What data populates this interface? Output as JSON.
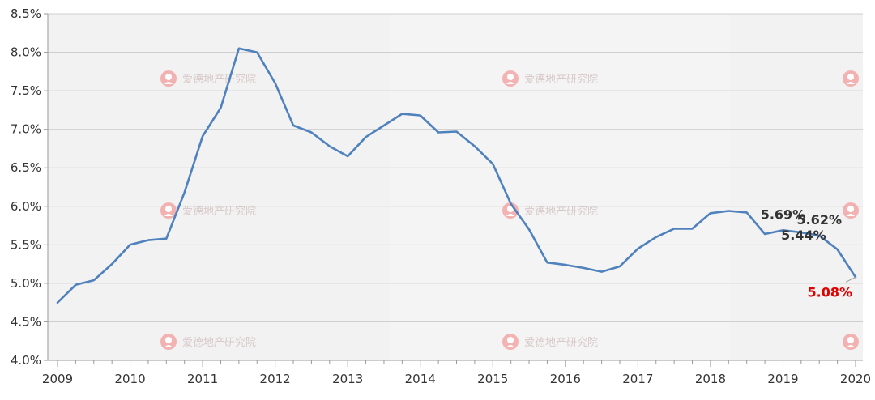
{
  "chart_data": {
    "type": "line",
    "title": "",
    "xlabel": "",
    "ylabel": "",
    "x_ticks": [
      "2009",
      "2010",
      "2011",
      "2012",
      "2013",
      "2014",
      "2015",
      "2016",
      "2017",
      "2018",
      "2019",
      "2020"
    ],
    "y_ticks": [
      "4.0%",
      "4.5%",
      "5.0%",
      "5.5%",
      "6.0%",
      "6.5%",
      "7.0%",
      "7.5%",
      "8.0%",
      "8.5%"
    ],
    "ylim": [
      4.0,
      8.5
    ],
    "xlim": [
      2009.0,
      2020.0
    ],
    "grid": true,
    "line_color": "#4f81bd",
    "series": [
      {
        "points": [
          [
            2009.0,
            4.75
          ],
          [
            2009.25,
            4.98
          ],
          [
            2009.5,
            5.04
          ],
          [
            2009.75,
            5.25
          ],
          [
            2010.0,
            5.5
          ],
          [
            2010.25,
            5.56
          ],
          [
            2010.5,
            5.58
          ],
          [
            2010.75,
            6.18
          ],
          [
            2011.0,
            6.91
          ],
          [
            2011.25,
            7.28
          ],
          [
            2011.5,
            8.05
          ],
          [
            2011.75,
            8.0
          ],
          [
            2012.0,
            7.6
          ],
          [
            2012.25,
            7.05
          ],
          [
            2012.5,
            6.96
          ],
          [
            2012.75,
            6.78
          ],
          [
            2013.0,
            6.65
          ],
          [
            2013.25,
            6.9
          ],
          [
            2013.5,
            7.05
          ],
          [
            2013.75,
            7.2
          ],
          [
            2014.0,
            7.18
          ],
          [
            2014.25,
            6.96
          ],
          [
            2014.5,
            6.97
          ],
          [
            2014.75,
            6.78
          ],
          [
            2015.0,
            6.55
          ],
          [
            2015.25,
            6.03
          ],
          [
            2015.5,
            5.7
          ],
          [
            2015.75,
            5.27
          ],
          [
            2016.0,
            5.24
          ],
          [
            2016.25,
            5.2
          ],
          [
            2016.5,
            5.15
          ],
          [
            2016.75,
            5.22
          ],
          [
            2017.0,
            5.45
          ],
          [
            2017.25,
            5.6
          ],
          [
            2017.5,
            5.71
          ],
          [
            2017.75,
            5.71
          ],
          [
            2018.0,
            5.91
          ],
          [
            2018.25,
            5.94
          ],
          [
            2018.5,
            5.92
          ],
          [
            2018.75,
            5.64
          ],
          [
            2019.0,
            5.69
          ],
          [
            2019.25,
            5.66
          ],
          [
            2019.5,
            5.62
          ],
          [
            2019.75,
            5.44
          ],
          [
            2020.0,
            5.08
          ]
        ]
      }
    ],
    "annotations": [
      {
        "text": "5.69%",
        "x": 2019.0,
        "y": 5.69,
        "color": "#333333",
        "placement": "above"
      },
      {
        "text": "5.62%",
        "x": 2019.5,
        "y": 5.62,
        "color": "#333333",
        "placement": "above"
      },
      {
        "text": "5.44%",
        "x": 2019.75,
        "y": 5.44,
        "color": "#333333",
        "placement": "above-left"
      },
      {
        "text": "5.08%",
        "x": 2020.0,
        "y": 5.08,
        "color": "#e00000",
        "placement": "below-left"
      }
    ]
  },
  "watermark": {
    "text": "爱德地产研究院",
    "icon": "logo-icon",
    "color": "#f2a7a7"
  }
}
